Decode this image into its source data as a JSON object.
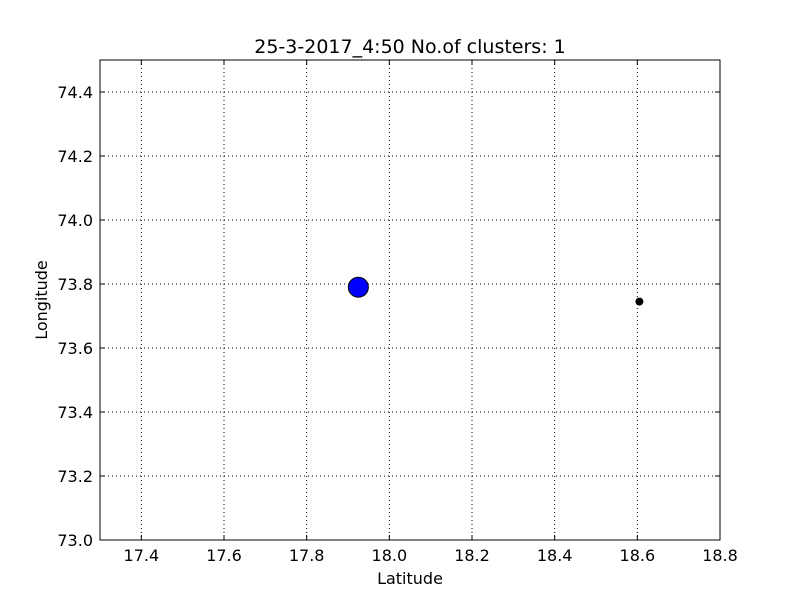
{
  "chart_data": {
    "type": "scatter",
    "title": "25-3-2017_4:50 No.of clusters: 1",
    "xlabel": "Latitude",
    "ylabel": "Longitude",
    "xlim": [
      17.3,
      18.8
    ],
    "ylim": [
      73.0,
      74.5
    ],
    "xticks": [
      "17.4",
      "17.6",
      "17.8",
      "18.0",
      "18.2",
      "18.4",
      "18.6",
      "18.8"
    ],
    "yticks": [
      "73.0",
      "73.2",
      "73.4",
      "73.6",
      "73.8",
      "74.0",
      "74.2",
      "74.4"
    ],
    "grid": true,
    "points": [
      {
        "x": 17.925,
        "y": 73.79,
        "color": "#0000ff",
        "marker": "large"
      },
      {
        "x": 18.605,
        "y": 73.745,
        "color": "#000000",
        "marker": "small"
      }
    ]
  }
}
